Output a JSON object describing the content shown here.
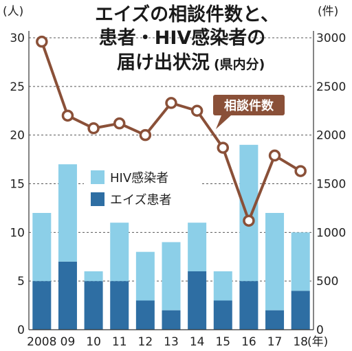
{
  "title_lines": [
    "エイズの相談件数と、",
    "患者・HIV感染者の",
    "届け出状況"
  ],
  "title_note": "(県内分)",
  "left_unit": "(人)",
  "right_unit": "(件)",
  "x_unit": "(年)",
  "legend": {
    "hiv": "HIV感染者",
    "aids": "エイズ患者"
  },
  "callout": "相談件数",
  "colors": {
    "hiv": "#8ccfe8",
    "aids": "#2e6ea3",
    "line": "#8a5038",
    "callout_bg": "#8a5038"
  },
  "chart_data": {
    "type": "bar+line",
    "categories": [
      "2008",
      "09",
      "10",
      "11",
      "12",
      "13",
      "14",
      "15",
      "16",
      "17",
      "18"
    ],
    "series": [
      {
        "name": "HIV感染者",
        "type": "stacked-bar",
        "axis": "left",
        "values": [
          7,
          10,
          1,
          6,
          5,
          7,
          5,
          3,
          14,
          10,
          6
        ]
      },
      {
        "name": "エイズ患者",
        "type": "stacked-bar",
        "axis": "left",
        "values": [
          5,
          7,
          5,
          5,
          3,
          2,
          6,
          3,
          5,
          2,
          4
        ]
      },
      {
        "name": "相談件数",
        "type": "line",
        "axis": "right",
        "values": [
          2960,
          2200,
          2070,
          2120,
          2000,
          2330,
          2250,
          1870,
          1120,
          1790,
          1630
        ]
      }
    ],
    "left_axis": {
      "ylim": [
        0,
        30
      ],
      "ticks": [
        0,
        5,
        10,
        15,
        20,
        25,
        30
      ]
    },
    "right_axis": {
      "ylim": [
        0,
        3000
      ],
      "ticks": [
        0,
        500,
        1000,
        1500,
        2000,
        2500,
        3000
      ]
    },
    "grid": "horizontal dashed"
  }
}
